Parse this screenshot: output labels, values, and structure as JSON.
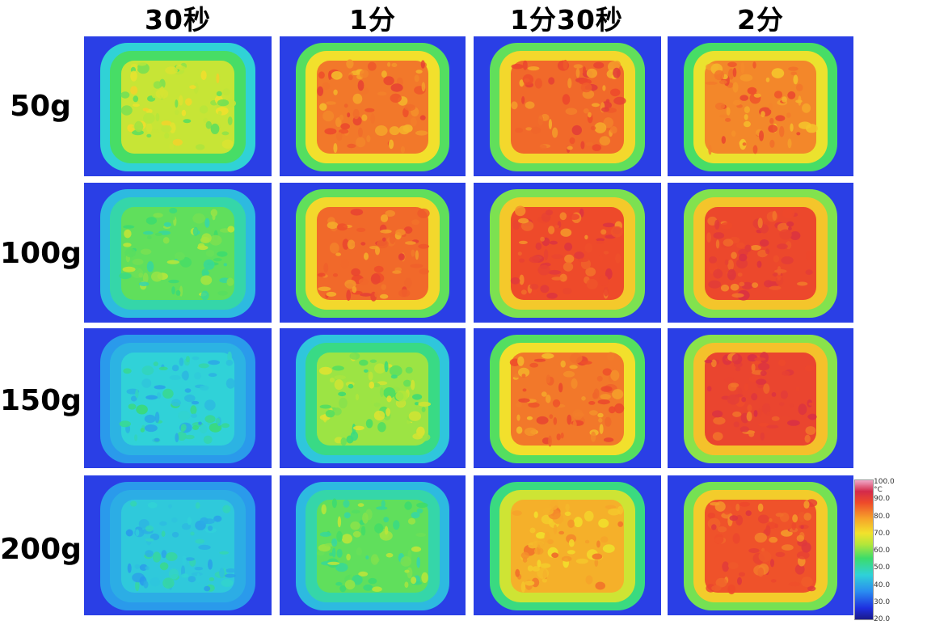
{
  "columns": [
    "30秒",
    "1分",
    "1分30秒",
    "2分"
  ],
  "rows": [
    "50g",
    "100g",
    "150g",
    "200g"
  ],
  "heat_levels": [
    [
      0.55,
      0.8,
      0.82,
      0.78
    ],
    [
      0.45,
      0.82,
      0.86,
      0.87
    ],
    [
      0.3,
      0.5,
      0.8,
      0.88
    ],
    [
      0.28,
      0.45,
      0.72,
      0.85
    ]
  ],
  "colors": {
    "background": "#2a3fe6",
    "cold": "#2fd2d8",
    "warm": "#f2e22c",
    "hot": "#ee4a2a"
  },
  "scale": {
    "unit": "°C",
    "ticks": [
      "100.0",
      "90.0",
      "80.0",
      "70.0",
      "60.0",
      "50.0",
      "40.0",
      "30.0",
      "20.0"
    ]
  }
}
